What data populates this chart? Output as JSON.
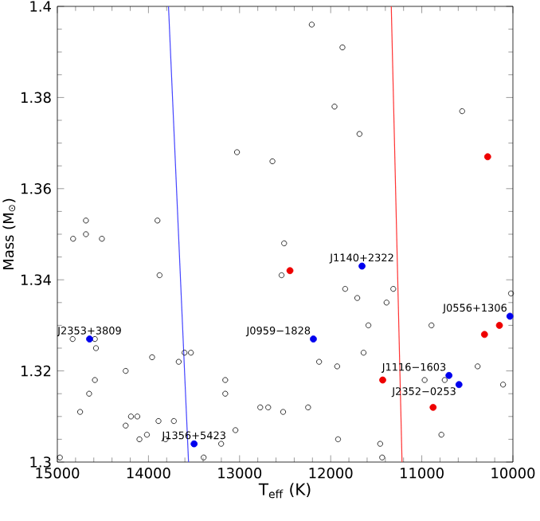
{
  "chart_data": {
    "type": "scatter",
    "xlabel": "T$_{eff}$ (K)",
    "ylabel": "Mass (M$_{⊙}$)",
    "xlim": [
      15000,
      10000
    ],
    "ylim": [
      1.3,
      1.4
    ],
    "xticks": [
      15000,
      14000,
      13000,
      12000,
      11000,
      10000
    ],
    "yticks": [
      1.3,
      1.32,
      1.34,
      1.36,
      1.38,
      1.4
    ],
    "grid": false,
    "marker": "circle",
    "series": [
      {
        "color": "#000000",
        "x": [
          14827,
          14686,
          14686,
          14511,
          13901,
          13028,
          12639,
          12511,
          12208,
          11871,
          11958,
          11684,
          10557,
          13878,
          14832,
          14588,
          14576,
          14250,
          13960,
          13604,
          13534,
          13668,
          14588,
          14651,
          14750,
          13157,
          13157,
          14192,
          14122,
          14250,
          13890,
          13721,
          14099,
          14017,
          13813,
          13045,
          13202,
          13394,
          14972,
          12773,
          12686,
          12522,
          12539,
          11841,
          11708,
          11313,
          11387,
          11586,
          11639,
          12127,
          11929,
          10894,
          10021,
          10749,
          10969,
          10387,
          10108,
          12248,
          11919,
          11457,
          10785,
          11435
        ],
        "values": [
          1.349,
          1.353,
          1.35,
          1.349,
          1.353,
          1.368,
          1.366,
          1.348,
          1.396,
          1.391,
          1.378,
          1.372,
          1.377,
          1.341,
          1.327,
          1.327,
          1.325,
          1.32,
          1.323,
          1.324,
          1.324,
          1.322,
          1.318,
          1.315,
          1.311,
          1.318,
          1.315,
          1.31,
          1.31,
          1.308,
          1.309,
          1.309,
          1.305,
          1.306,
          1.305,
          1.307,
          1.304,
          1.301,
          1.301,
          1.312,
          1.312,
          1.311,
          1.341,
          1.338,
          1.336,
          1.338,
          1.335,
          1.33,
          1.324,
          1.322,
          1.321,
          1.33,
          1.337,
          1.318,
          1.318,
          1.321,
          1.317,
          1.312,
          1.305,
          1.304,
          1.306,
          1.301
        ]
      },
      {
        "color": "#ee0000",
        "x": [
          10277,
          12447,
          11429,
          10312,
          10148,
          10876
        ],
        "values": [
          1.367,
          1.342,
          1.318,
          1.328,
          1.33,
          1.312
        ]
      },
      {
        "color": "#0000ee",
        "x": [
          11656,
          14646,
          12190,
          13499,
          10033,
          10702,
          10592
        ],
        "values": [
          1.343,
          1.327,
          1.327,
          1.304,
          1.332,
          1.319,
          1.317
        ]
      },
      {
        "type": "line",
        "color": "#4444ff",
        "marker": "none",
        "x": [
          13780,
          13560
        ],
        "values": [
          1.4,
          1.3
        ]
      },
      {
        "type": "line",
        "color": "#ff3333",
        "marker": "none",
        "x": [
          11335,
          11217
        ],
        "values": [
          1.4,
          1.3
        ]
      }
    ],
    "annotations": [
      {
        "text": "J1140+2322",
        "x": 11656,
        "y": 1.343
      },
      {
        "text": "J2353+3809",
        "x": 14646,
        "y": 1.327
      },
      {
        "text": "J0959−1828",
        "x": 12190,
        "y": 1.327
      },
      {
        "text": "J1356+5423",
        "x": 13499,
        "y": 1.304
      },
      {
        "text": "J0556+1306",
        "x": 10033,
        "y": 1.332
      },
      {
        "text": "J1116−1603",
        "x": 10702,
        "y": 1.319
      },
      {
        "text": "J2352−0253",
        "x": 10592,
        "y": 1.317
      }
    ]
  }
}
